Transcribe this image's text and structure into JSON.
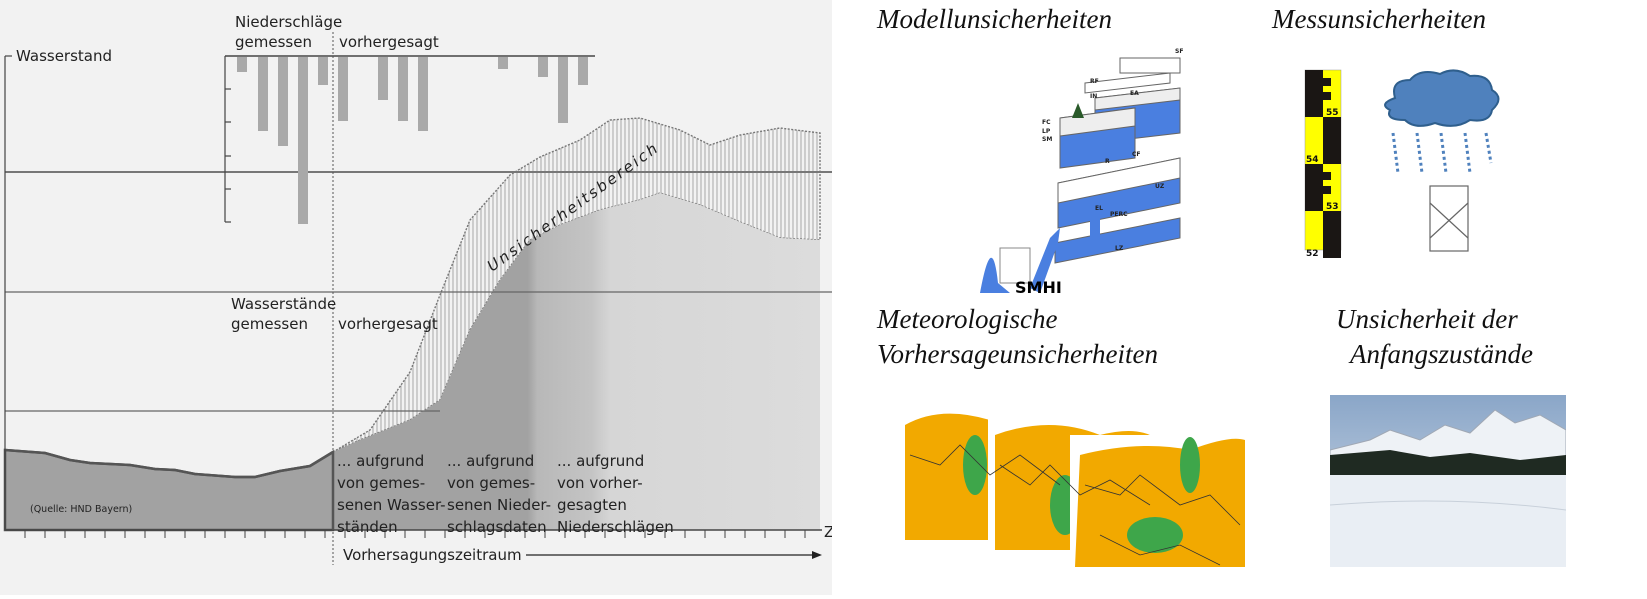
{
  "diagram": {
    "y_axis_label": "Wasserstand",
    "x_axis_label": "Zeit",
    "precip_title": "Niederschläge",
    "precip_measured": "gemessen",
    "precip_forecast": "vorhergesagt",
    "level_measured_1": "Wasserstände",
    "level_measured_2": "gemessen",
    "level_forecast": "vorhergesagt",
    "uncertainty_label": "Unsicherheitsbereich",
    "source": "(Quelle: HND Bayern)",
    "forecast_period": "Vorhersagungszeitraum",
    "basis": [
      {
        "lines": [
          "... aufgrund",
          "von gemes-",
          "senen Wasser-",
          "ständen"
        ]
      },
      {
        "lines": [
          "... aufgrund",
          "von gemes-",
          "senen Nieder-",
          "schlagsdaten"
        ]
      },
      {
        "lines": [
          "... aufgrund",
          "von vorher-",
          "gesagten",
          "Niederschlägen"
        ]
      }
    ]
  },
  "panels": {
    "model": {
      "title": "Modellunsicherheiten",
      "logo": "SMHI",
      "labels": [
        "SF",
        "RF",
        "IN",
        "EA",
        "FC",
        "LP",
        "SM",
        "R",
        "CF",
        "UZ",
        "PERC",
        "LZ",
        "EL"
      ]
    },
    "measurement": {
      "title": "Messunsicherheiten",
      "gauge_labels": [
        "55",
        "54",
        "53",
        "52"
      ]
    },
    "meteo": {
      "title_1": "Meteorologische",
      "title_2": "Vorhersageunsicherheiten"
    },
    "initial": {
      "title_1": "Unsicherheit der",
      "title_2": "Anfangszustände"
    }
  },
  "colors": {
    "bars": "#a9a9a9",
    "water": "#4a7fe0",
    "gauge_yellow": "#ffff00",
    "cloud": "#4f81bd",
    "map_orange": "#f2a900",
    "map_green": "#3ea64a"
  }
}
